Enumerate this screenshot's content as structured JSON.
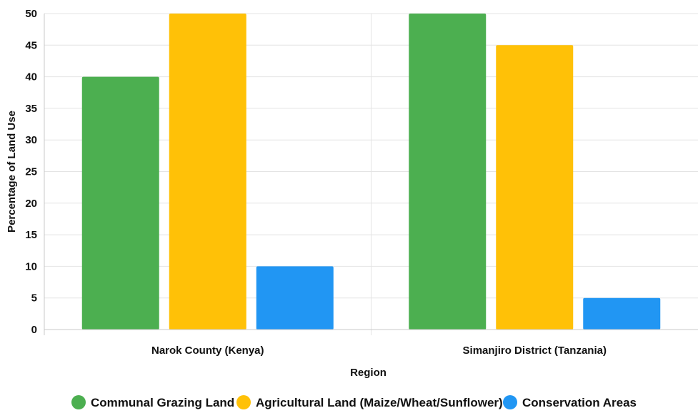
{
  "chart_data": {
    "type": "bar",
    "categories": [
      "Narok County (Kenya)",
      "Simanjiro District (Tanzania)"
    ],
    "series": [
      {
        "name": "Communal Grazing Land",
        "values": [
          40,
          50
        ],
        "color": "#4caf50"
      },
      {
        "name": "Agricultural Land (Maize/Wheat/Sunflower)",
        "values": [
          50,
          45
        ],
        "color": "#ffc107"
      },
      {
        "name": "Conservation Areas",
        "values": [
          10,
          5
        ],
        "color": "#2196f3"
      }
    ],
    "xlabel": "Region",
    "ylabel": "Percentage of Land Use",
    "ylim": [
      0,
      50
    ],
    "yticks": [
      0,
      5,
      10,
      15,
      20,
      25,
      30,
      35,
      40,
      45,
      50
    ],
    "grid": true,
    "legend_position": "bottom"
  }
}
